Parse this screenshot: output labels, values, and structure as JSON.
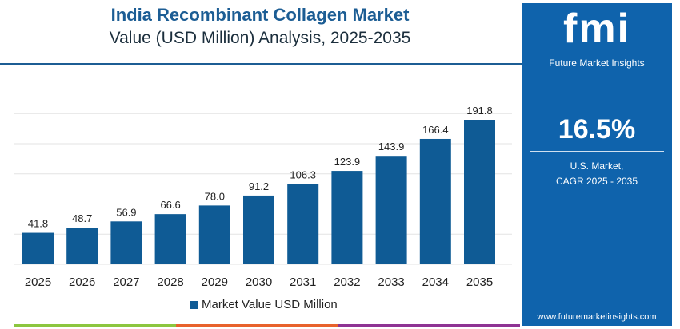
{
  "chart_data": {
    "type": "bar",
    "title": "India Recombinant Collagen Market",
    "subtitle": "Value (USD Million) Analysis, 2025-2035",
    "categories": [
      "2025",
      "2026",
      "2027",
      "2028",
      "2029",
      "2030",
      "2031",
      "2032",
      "2033",
      "2034",
      "2035"
    ],
    "series": [
      {
        "name": "Market Value USD Million",
        "values": [
          41.8,
          48.7,
          56.9,
          66.6,
          78.0,
          91.2,
          106.3,
          123.9,
          143.9,
          166.4,
          191.8
        ]
      }
    ],
    "ylim": [
      0,
      200
    ],
    "grid": true,
    "legend": "bottom",
    "bar_color": "#0f5b95"
  },
  "panel": {
    "logo": "fmi",
    "brand": "Future Market Insights",
    "cagr": "16.5%",
    "label1": "U.S. Market,",
    "label2": "CAGR 2025 - 2035",
    "url": "www.futuremarketinsights.com",
    "bg": "#0f63ac"
  }
}
